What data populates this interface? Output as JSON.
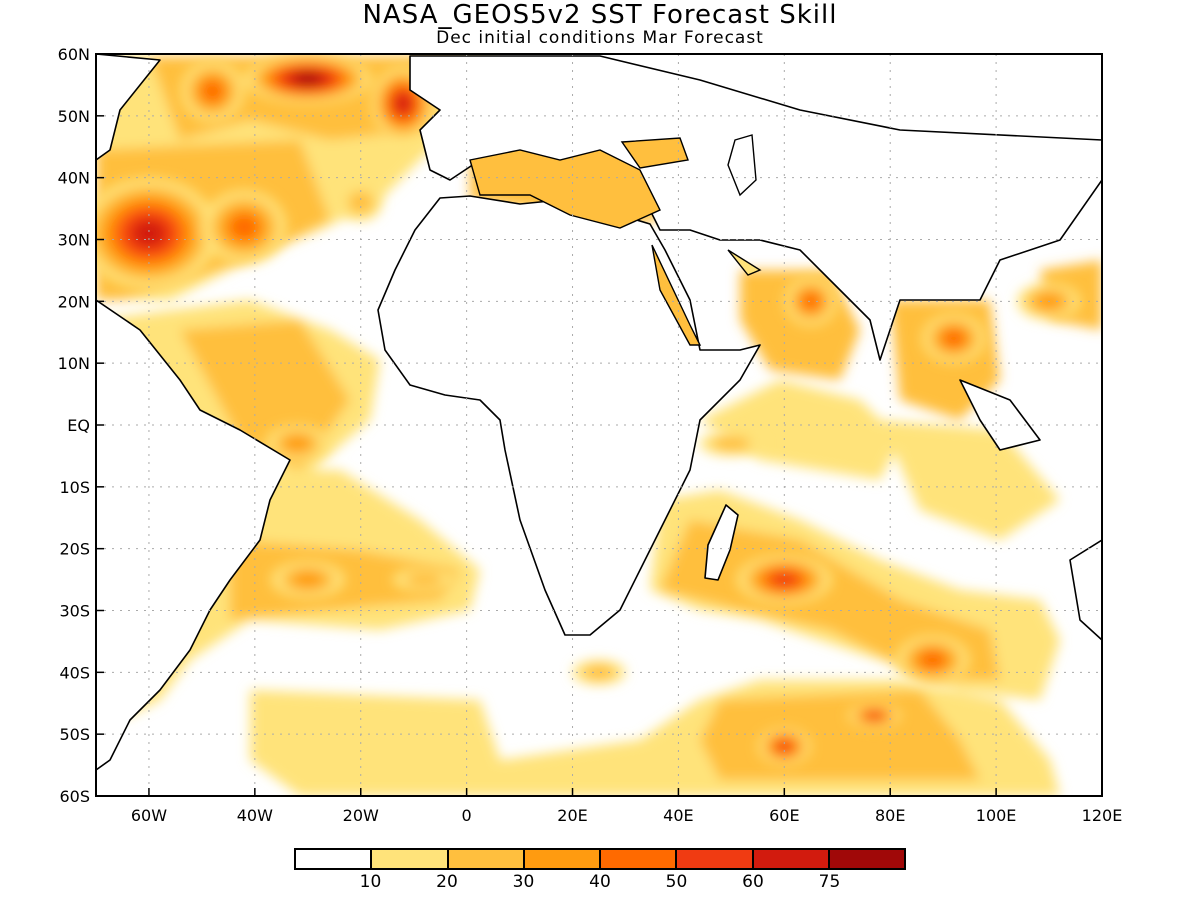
{
  "title": "NASA_GEOS5v2 SST Forecast Skill",
  "subtitle": "Dec initial conditions  Mar Forecast",
  "axes": {
    "lon_ticks": [
      "60W",
      "40W",
      "20W",
      "0",
      "20E",
      "40E",
      "60E",
      "80E",
      "100E",
      "120E"
    ],
    "lat_ticks": [
      "60N",
      "50N",
      "40N",
      "30N",
      "20N",
      "10N",
      "EQ",
      "10S",
      "20S",
      "30S",
      "40S",
      "50S",
      "60S"
    ],
    "lon_range": [
      -70,
      120
    ],
    "lat_range": [
      -60,
      60
    ]
  },
  "colorbar": {
    "labels": [
      "10",
      "20",
      "30",
      "40",
      "50",
      "60",
      "75"
    ],
    "colors": [
      "#ffffff",
      "#ffe37a",
      "#ffbf3e",
      "#ff9b10",
      "#ff6a00",
      "#f03b12",
      "#d21b0e",
      "#a00808"
    ]
  },
  "skill_regions": [
    {
      "lon": -60,
      "lat": 31,
      "rx": 13,
      "ry": 9,
      "level": 6
    },
    {
      "lon": -42,
      "lat": 32,
      "rx": 8,
      "ry": 6,
      "level": 4
    },
    {
      "lon": -48,
      "lat": 54,
      "rx": 6,
      "ry": 5,
      "level": 4
    },
    {
      "lon": -30,
      "lat": 56,
      "rx": 12,
      "ry": 4,
      "level": 7
    },
    {
      "lon": -12,
      "lat": 52,
      "rx": 6,
      "ry": 6,
      "level": 6
    },
    {
      "lon": -32,
      "lat": -3,
      "rx": 6,
      "ry": 3,
      "level": 3
    },
    {
      "lon": -30,
      "lat": -25,
      "rx": 7,
      "ry": 3,
      "level": 3
    },
    {
      "lon": -8,
      "lat": -25,
      "rx": 6,
      "ry": 2,
      "level": 2
    },
    {
      "lon": 20,
      "lat": 40,
      "rx": 4,
      "ry": 2,
      "level": 3
    },
    {
      "lon": 27,
      "lat": 34,
      "rx": 4,
      "ry": 2,
      "level": 5
    },
    {
      "lon": 37,
      "lat": 43,
      "rx": 4,
      "ry": 2,
      "level": 3
    },
    {
      "lon": 65,
      "lat": 20,
      "rx": 5,
      "ry": 4,
      "level": 4
    },
    {
      "lon": 92,
      "lat": 14,
      "rx": 6,
      "ry": 4,
      "level": 4
    },
    {
      "lon": 60,
      "lat": -25,
      "rx": 9,
      "ry": 4,
      "level": 5
    },
    {
      "lon": 88,
      "lat": -38,
      "rx": 7,
      "ry": 4,
      "level": 4
    },
    {
      "lon": 60,
      "lat": -52,
      "rx": 5,
      "ry": 3,
      "level": 5
    },
    {
      "lon": 77,
      "lat": -47,
      "rx": 5,
      "ry": 2,
      "level": 5
    },
    {
      "lon": 50,
      "lat": -3,
      "rx": 6,
      "ry": 2,
      "level": 2
    },
    {
      "lon": -20,
      "lat": 36,
      "rx": 4,
      "ry": 3,
      "level": 2
    },
    {
      "lon": 25,
      "lat": -40,
      "rx": 5,
      "ry": 2,
      "level": 2
    },
    {
      "lon": 110,
      "lat": 20,
      "rx": 6,
      "ry": 3,
      "level": 3
    }
  ]
}
